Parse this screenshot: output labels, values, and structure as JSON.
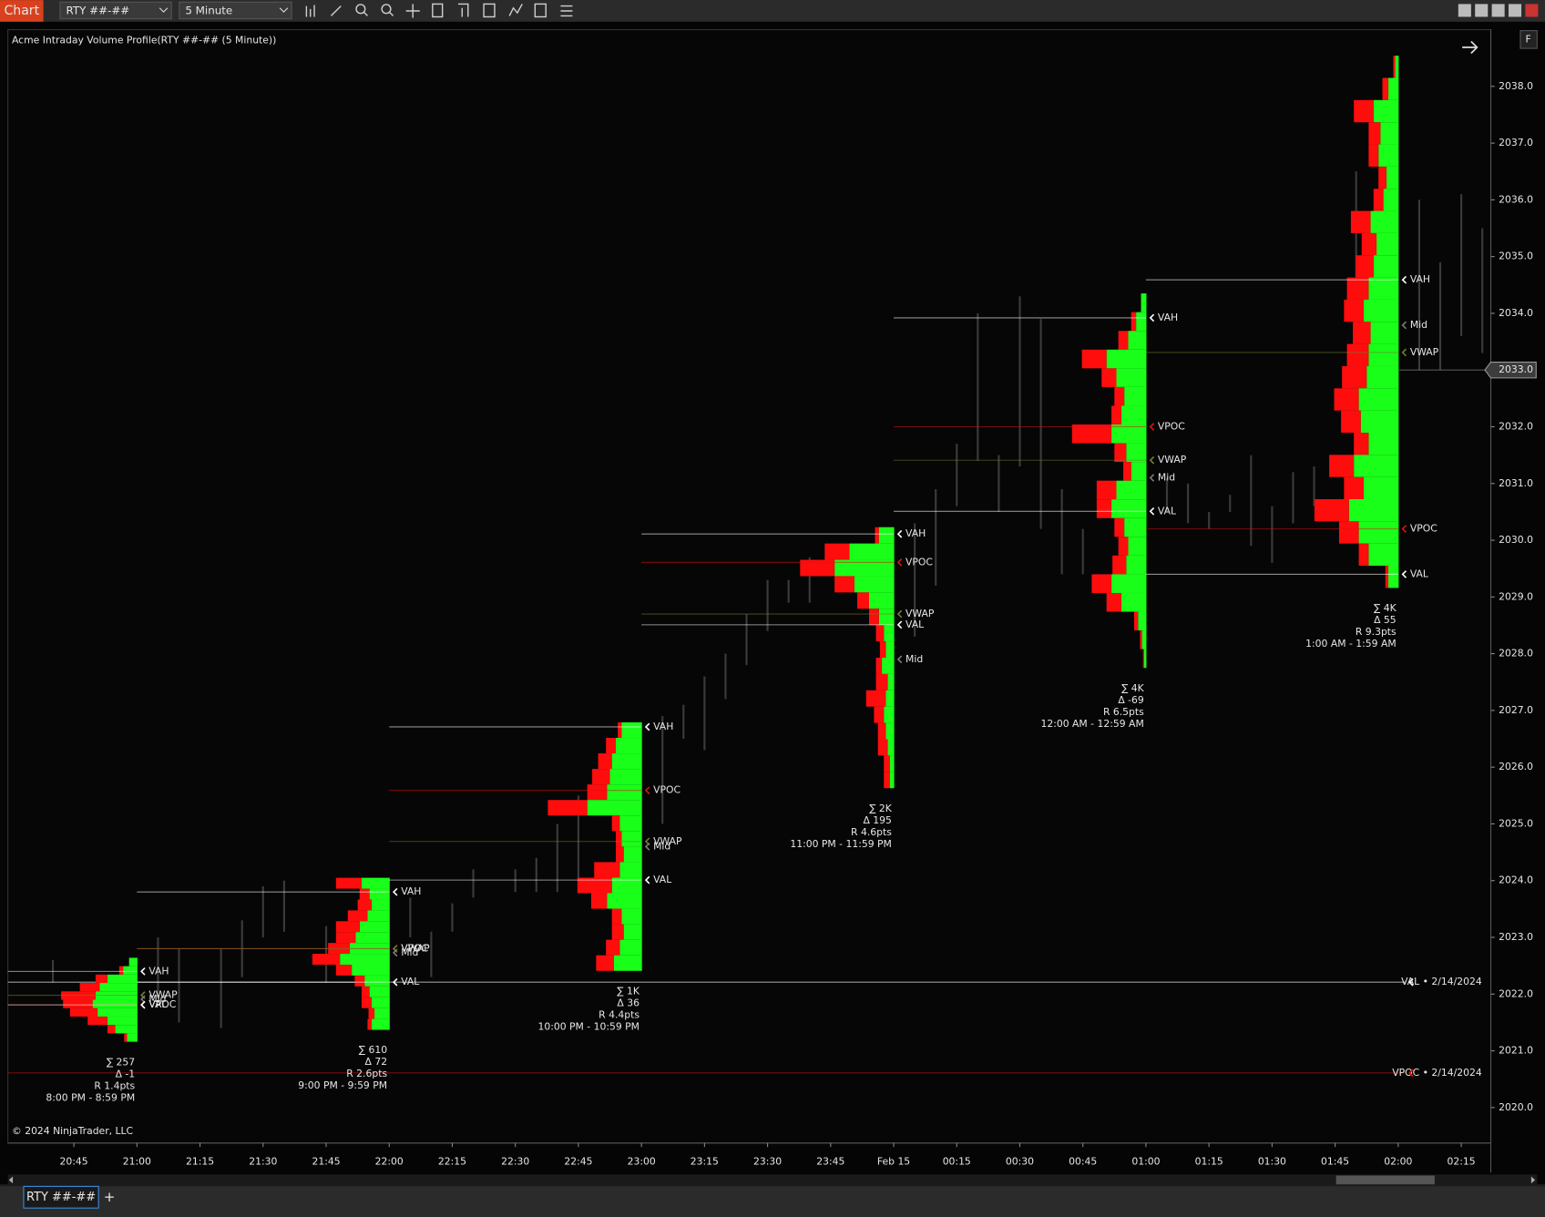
{
  "toolbar": {
    "tab": "Chart",
    "instrument": "RTY ##-##",
    "interval": "5 Minute"
  },
  "chart": {
    "title": "Acme Intraday Volume Profile(RTY ##-## (5 Minute))",
    "copyright": "© 2024 NinjaTrader, LLC",
    "ylim": [
      2019.375,
      2039.0
    ],
    "yticks": [
      {
        "value": 2020,
        "label": "2020.0"
      },
      {
        "value": 2021,
        "label": "2021.0"
      },
      {
        "value": 2022,
        "label": "2022.0"
      },
      {
        "value": 2023,
        "label": "2023.0"
      },
      {
        "value": 2024,
        "label": "2024.0"
      },
      {
        "value": 2025,
        "label": "2025.0"
      },
      {
        "value": 2026,
        "label": "2026.0"
      },
      {
        "value": 2027,
        "label": "2027.0"
      },
      {
        "value": 2028,
        "label": "2028.0"
      },
      {
        "value": 2029,
        "label": "2029.0"
      },
      {
        "value": 2030,
        "label": "2030.0"
      },
      {
        "value": 2031,
        "label": "2031.0"
      },
      {
        "value": 2032,
        "label": "2032.0"
      },
      {
        "value": 2033,
        "label": "2033.0"
      },
      {
        "value": 2034,
        "label": "2034.0"
      },
      {
        "value": 2035,
        "label": "2035.0"
      },
      {
        "value": 2036,
        "label": "2036.0"
      },
      {
        "value": 2037,
        "label": "2037.0"
      },
      {
        "value": 2038,
        "label": "2038.0"
      }
    ],
    "xticks": [
      "20:45",
      "21:00",
      "21:15",
      "21:30",
      "21:45",
      "22:00",
      "22:15",
      "22:30",
      "22:45",
      "23:00",
      "23:15",
      "23:30",
      "23:45",
      "Feb 15",
      "00:15",
      "00:30",
      "00:45",
      "01:00",
      "01:15",
      "01:30",
      "01:45",
      "02:00",
      "02:15"
    ],
    "last_price": {
      "value": 2033,
      "label": "2033.0"
    },
    "colors": {
      "buy": "#19ff19",
      "sell": "#ff0d0d",
      "VAH": "#ffffff",
      "VAL": "#ffffff",
      "VPOC": "#e01010",
      "VWAP": "#6e7d2c",
      "Mid": "#7a7a7a",
      "candle": "#3a3a3a"
    },
    "candles": {
      "time": [
        "20:40",
        "20:55",
        "21:05",
        "21:10",
        "21:20",
        "21:25",
        "21:30",
        "21:35",
        "21:45",
        "22:05",
        "22:10",
        "22:15",
        "22:20",
        "22:30",
        "22:35",
        "22:40",
        "22:45",
        "22:55",
        "23:05",
        "23:10",
        "23:15",
        "23:20",
        "23:25",
        "23:30",
        "23:35",
        "23:40",
        "23:50",
        "00:05",
        "00:10",
        "00:15",
        "00:20",
        "00:25",
        "00:30",
        "00:35",
        "00:40",
        "00:45",
        "01:05",
        "01:10",
        "01:15",
        "01:20",
        "01:25",
        "01:30",
        "01:35",
        "01:40",
        "01:50",
        "02:05",
        "02:10",
        "02:15",
        "02:20"
      ],
      "high": [
        2022.6,
        2022.2,
        2023.0,
        2022.8,
        2022.8,
        2023.3,
        2023.9,
        2024.0,
        2023.2,
        2023.7,
        2023.1,
        2023.6,
        2024.2,
        2024.2,
        2024.4,
        2025.0,
        2025.5,
        2025.3,
        2026.9,
        2027.1,
        2027.6,
        2028.0,
        2028.7,
        2029.3,
        2029.3,
        2029.7,
        2029.6,
        2030.3,
        2030.9,
        2031.7,
        2034.0,
        2031.5,
        2034.3,
        2033.9,
        2030.9,
        2030.2,
        2031.1,
        2031.0,
        2030.5,
        2030.8,
        2031.5,
        2030.6,
        2031.2,
        2031.3,
        2036.5,
        2036.0,
        2034.9,
        2036.1,
        2035.5
      ],
      "low": [
        2022.2,
        2021.5,
        2022.0,
        2021.5,
        2021.4,
        2022.3,
        2023.0,
        2023.1,
        2022.2,
        2023.0,
        2022.3,
        2023.1,
        2023.7,
        2023.8,
        2023.8,
        2023.8,
        2024.0,
        2024.6,
        2025.0,
        2026.5,
        2026.3,
        2027.2,
        2027.8,
        2028.4,
        2028.9,
        2028.9,
        2029.2,
        2028.3,
        2029.2,
        2030.6,
        2031.4,
        2030.5,
        2031.3,
        2030.2,
        2029.4,
        2029.4,
        2030.5,
        2030.3,
        2030.2,
        2030.5,
        2029.9,
        2029.6,
        2030.3,
        2030.6,
        2033.5,
        2033.0,
        2033.0,
        2033.6,
        2033.3
      ]
    },
    "profiles": [
      {
        "end": "21:00",
        "top": 2022.64,
        "bottom": 2021.16,
        "buy": [
          8,
          14,
          30,
          38,
          42,
          45,
          40,
          30,
          22,
          10
        ],
        "sell": [
          0,
          4,
          12,
          20,
          35,
          30,
          28,
          20,
          8,
          3
        ],
        "levels": [
          {
            "label": "VAH",
            "value": 2022.4
          },
          {
            "label": "VWAP",
            "value": 2021.98
          },
          {
            "label": "Mid",
            "value": 2021.91
          },
          {
            "label": "VPOC",
            "value": 2021.81
          },
          {
            "label": "VAL",
            "value": 2021.81
          }
        ],
        "stats": [
          "∑ 257",
          "Δ -1",
          "R 1.4pts",
          "8:00 PM - 8:59 PM"
        ]
      },
      {
        "end": "22:00",
        "top": 2024.05,
        "bottom": 2021.37,
        "buy": [
          28,
          20,
          18,
          22,
          30,
          34,
          40,
          50,
          38,
          25,
          20,
          18,
          15,
          18
        ],
        "sell": [
          26,
          10,
          14,
          20,
          24,
          20,
          22,
          28,
          16,
          10,
          8,
          10,
          6,
          4
        ],
        "levels": [
          {
            "label": "VAH",
            "value": 2023.8
          },
          {
            "label": "VPOC",
            "value": 2022.8
          },
          {
            "label": "VWAP",
            "value": 2022.8
          },
          {
            "label": "Mid",
            "value": 2022.73
          },
          {
            "label": "VAL",
            "value": 2022.21
          }
        ],
        "stats": [
          "∑ 610",
          "Δ 72",
          "R 2.6pts",
          "9:00 PM - 9:59 PM"
        ]
      },
      {
        "end": "23:00",
        "top": 2026.79,
        "bottom": 2022.41,
        "buy": [
          20,
          26,
          30,
          32,
          35,
          55,
          22,
          20,
          18,
          22,
          30,
          35,
          20,
          18,
          22,
          28
        ],
        "sell": [
          4,
          10,
          14,
          18,
          20,
          40,
          8,
          6,
          8,
          26,
          35,
          16,
          10,
          12,
          14,
          18
        ],
        "levels": [
          {
            "label": "VAH",
            "value": 2026.71
          },
          {
            "label": "VPOC",
            "value": 2025.59
          },
          {
            "label": "VWAP",
            "value": 2024.69
          },
          {
            "label": "Mid",
            "value": 2024.6
          },
          {
            "label": "VAL",
            "value": 2024.01
          }
        ],
        "stats": [
          "∑ 1K",
          "Δ 36",
          "R 4.4pts",
          "10:00 PM - 10:59 PM"
        ]
      },
      {
        "end": "00:00",
        "top": 2030.23,
        "bottom": 2025.63,
        "buy": [
          15,
          45,
          60,
          40,
          25,
          15,
          10,
          8,
          12,
          6,
          8,
          10,
          8,
          6,
          4,
          4
        ],
        "sell": [
          4,
          25,
          35,
          20,
          12,
          10,
          8,
          6,
          6,
          12,
          20,
          10,
          8,
          10,
          6,
          6
        ],
        "levels": [
          {
            "label": "VAH",
            "value": 2030.11
          },
          {
            "label": "VPOC",
            "value": 2029.61
          },
          {
            "label": "VWAP",
            "value": 2028.7
          },
          {
            "label": "VAL",
            "value": 2028.51
          },
          {
            "label": "Mid",
            "value": 2027.9
          }
        ],
        "stats": [
          "∑ 2K",
          "Δ 195",
          "R 4.6pts",
          "11:00 PM - 11:59 PM"
        ]
      },
      {
        "end": "01:00",
        "top": 2034.35,
        "bottom": 2027.75,
        "buy": [
          5,
          10,
          18,
          40,
          30,
          22,
          25,
          35,
          20,
          15,
          30,
          35,
          22,
          18,
          20,
          35,
          25,
          8,
          4,
          2
        ],
        "sell": [
          0,
          5,
          10,
          25,
          15,
          10,
          10,
          40,
          12,
          8,
          20,
          15,
          10,
          10,
          14,
          20,
          15,
          4,
          2,
          1
        ],
        "levels": [
          {
            "label": "VAH",
            "value": 2033.92
          },
          {
            "label": "VPOC",
            "value": 2032.0
          },
          {
            "label": "VWAP",
            "value": 2031.41
          },
          {
            "label": "Mid",
            "value": 2031.1
          },
          {
            "label": "VAL",
            "value": 2030.51
          }
        ],
        "stats": [
          "∑ 4K",
          "Δ -69",
          "R 6.5pts",
          "12:00 AM - 12:59 AM"
        ]
      },
      {
        "end": "02:00",
        "top": 2038.54,
        "bottom": 2029.16,
        "buy": [
          3,
          10,
          25,
          18,
          20,
          12,
          15,
          28,
          22,
          25,
          30,
          35,
          28,
          30,
          32,
          40,
          38,
          30,
          45,
          35,
          50,
          40,
          30,
          10
        ],
        "sell": [
          2,
          6,
          20,
          12,
          10,
          8,
          10,
          20,
          15,
          18,
          22,
          20,
          18,
          22,
          25,
          25,
          20,
          15,
          25,
          20,
          35,
          20,
          10,
          3
        ],
        "levels": [
          {
            "label": "VAH",
            "value": 2034.59
          },
          {
            "label": "Mid",
            "value": 2033.79
          },
          {
            "label": "VWAP",
            "value": 2033.31
          },
          {
            "label": "VPOC",
            "value": 2030.2
          },
          {
            "label": "VAL",
            "value": 2029.4
          }
        ],
        "stats": [
          "∑ 4K",
          "Δ 55",
          "R 9.3pts",
          "1:00 AM - 1:59 AM"
        ]
      }
    ],
    "prior_levels": [
      {
        "label": "VAL • 2/14/2024",
        "value": 2022.21,
        "color": "#ffffff"
      },
      {
        "label": "VPOC • 2/14/2024",
        "value": 2020.61,
        "color": "#e01010"
      }
    ]
  },
  "tabs": [
    "RTY ##-##",
    "+"
  ]
}
